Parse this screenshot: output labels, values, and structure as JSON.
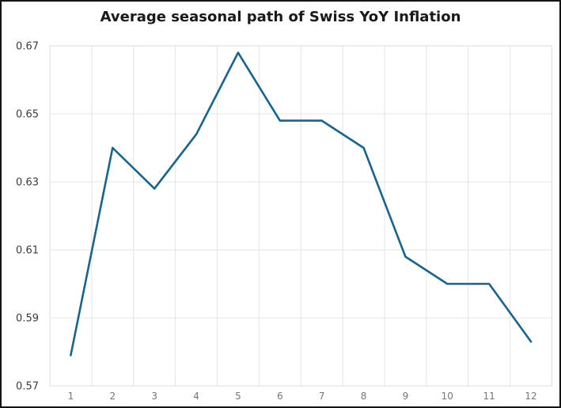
{
  "window": {
    "background": "#ffffff",
    "frame_color": "#141414"
  },
  "chart_data": {
    "type": "line",
    "title": "Average seasonal path of Swiss YoY Inflation",
    "xlabel": "",
    "ylabel": "",
    "categories": [
      "1",
      "2",
      "3",
      "4",
      "5",
      "6",
      "7",
      "8",
      "9",
      "10",
      "11",
      "12"
    ],
    "values": [
      0.579,
      0.64,
      0.628,
      0.644,
      0.668,
      0.648,
      0.648,
      0.64,
      0.608,
      0.6,
      0.6,
      0.583
    ],
    "ylim": [
      0.57,
      0.67
    ],
    "yticks": [
      0.57,
      0.59,
      0.61,
      0.63,
      0.65,
      0.67
    ],
    "ytick_labels": [
      "0.57",
      "0.59",
      "0.61",
      "0.63",
      "0.65",
      "0.67"
    ],
    "grid": true,
    "legend": "none",
    "colors": {
      "line": "#17648f",
      "grid": "#e4e4e4",
      "plot_border": "#dcdcdc",
      "ytick_text": "#3c3c3c",
      "xtick_text": "#767676",
      "title_text": "#1a1a1a"
    }
  }
}
